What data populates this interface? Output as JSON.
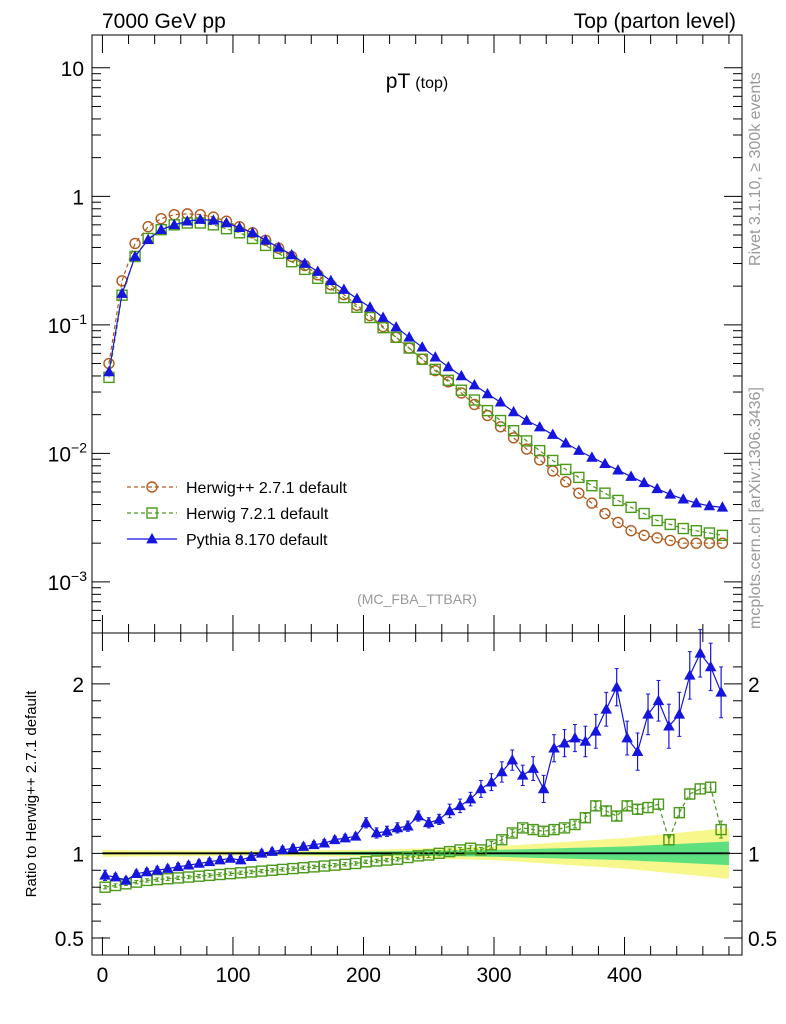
{
  "header": {
    "left": "7000 GeV pp",
    "right": "Top (parton level)"
  },
  "side_labels": {
    "rivet": "Rivet 3.1.10, ≥ 300k events",
    "mcplots": "mcplots.cern.ch [arXiv:1306.3436]"
  },
  "chart_data": [
    {
      "panel": "main",
      "type": "line",
      "title": "pT",
      "title_sub": "(top)",
      "watermark": "(MC_FBA_TTBAR)",
      "xlabel": "",
      "ylabel": "",
      "y_scale": "log",
      "xlim": [
        -8,
        490
      ],
      "ylim": [
        0.0004,
        18
      ],
      "y_ticks": [
        {
          "value": 10,
          "label": "10"
        },
        {
          "value": 1,
          "label": "1"
        },
        {
          "value": 0.1,
          "label": "10",
          "sup": "−1"
        },
        {
          "value": 0.01,
          "label": "10",
          "sup": "−2"
        },
        {
          "value": 0.001,
          "label": "10",
          "sup": "−3"
        }
      ],
      "legend_position": "lower-left",
      "series": [
        {
          "name": "Herwig++ 2.7.1 default",
          "color": "#b05a1e",
          "marker": "circle",
          "dashed": true,
          "x": [
            5,
            15,
            25,
            35,
            45,
            55,
            65,
            75,
            85,
            95,
            105,
            115,
            125,
            135,
            145,
            155,
            165,
            175,
            185,
            195,
            205,
            215,
            225,
            235,
            245,
            255,
            265,
            275,
            285,
            295,
            305,
            315,
            325,
            335,
            345,
            355,
            365,
            375,
            385,
            395,
            405,
            415,
            425,
            435,
            445,
            455,
            465,
            475
          ],
          "y": [
            0.05,
            0.22,
            0.43,
            0.58,
            0.67,
            0.72,
            0.73,
            0.72,
            0.69,
            0.64,
            0.58,
            0.52,
            0.455,
            0.395,
            0.34,
            0.29,
            0.245,
            0.205,
            0.172,
            0.142,
            0.118,
            0.097,
            0.08,
            0.066,
            0.054,
            0.044,
            0.036,
            0.0295,
            0.024,
            0.0197,
            0.0161,
            0.0132,
            0.0108,
            0.0089,
            0.0073,
            0.006,
            0.0049,
            0.0041,
            0.0034,
            0.0029,
            0.0025,
            0.0023,
            0.0022,
            0.0021,
            0.002,
            0.002,
            0.002,
            0.002
          ]
        },
        {
          "name": "Herwig 7.2.1 default",
          "color": "#4a9a1a",
          "marker": "square",
          "dashed": true,
          "x": [
            5,
            15,
            25,
            35,
            45,
            55,
            65,
            75,
            85,
            95,
            105,
            115,
            125,
            135,
            145,
            155,
            165,
            175,
            185,
            195,
            205,
            215,
            225,
            235,
            245,
            255,
            265,
            275,
            285,
            295,
            305,
            315,
            325,
            335,
            345,
            355,
            365,
            375,
            385,
            395,
            405,
            415,
            425,
            435,
            445,
            455,
            465,
            475
          ],
          "y": [
            0.039,
            0.17,
            0.34,
            0.47,
            0.55,
            0.6,
            0.62,
            0.62,
            0.6,
            0.56,
            0.52,
            0.47,
            0.415,
            0.36,
            0.31,
            0.27,
            0.23,
            0.193,
            0.163,
            0.137,
            0.114,
            0.095,
            0.08,
            0.066,
            0.054,
            0.045,
            0.037,
            0.031,
            0.026,
            0.0215,
            0.018,
            0.015,
            0.0125,
            0.0105,
            0.0088,
            0.0075,
            0.0065,
            0.0056,
            0.0049,
            0.0043,
            0.0038,
            0.0034,
            0.003,
            0.0028,
            0.0026,
            0.0025,
            0.0024,
            0.0023
          ]
        },
        {
          "name": "Pythia 8.170 default",
          "color": "#1515dd",
          "marker": "triangle",
          "dashed": false,
          "x": [
            5,
            15,
            25,
            35,
            45,
            55,
            65,
            75,
            85,
            95,
            105,
            115,
            125,
            135,
            145,
            155,
            165,
            175,
            185,
            195,
            205,
            215,
            225,
            235,
            245,
            255,
            265,
            275,
            285,
            295,
            305,
            315,
            325,
            335,
            345,
            355,
            365,
            375,
            385,
            395,
            405,
            415,
            425,
            435,
            445,
            455,
            465,
            475
          ],
          "y": [
            0.043,
            0.175,
            0.34,
            0.46,
            0.55,
            0.6,
            0.64,
            0.66,
            0.65,
            0.62,
            0.57,
            0.52,
            0.455,
            0.4,
            0.35,
            0.3,
            0.26,
            0.22,
            0.188,
            0.16,
            0.137,
            0.114,
            0.096,
            0.08,
            0.067,
            0.056,
            0.047,
            0.04,
            0.034,
            0.029,
            0.025,
            0.021,
            0.018,
            0.016,
            0.014,
            0.012,
            0.0105,
            0.0093,
            0.0083,
            0.0074,
            0.0066,
            0.0059,
            0.0053,
            0.0048,
            0.0044,
            0.0041,
            0.0039,
            0.0038
          ]
        }
      ]
    },
    {
      "panel": "ratio",
      "type": "line",
      "title": "",
      "xlabel": "",
      "ylabel": "Ratio to Herwig++ 2.7.1 default",
      "xlim": [
        -8,
        490
      ],
      "ylim": [
        0.4,
        2.3
      ],
      "x_ticks": [
        {
          "value": 0,
          "label": "0"
        },
        {
          "value": 100,
          "label": "100"
        },
        {
          "value": 200,
          "label": "200"
        },
        {
          "value": 300,
          "label": "300"
        },
        {
          "value": 400,
          "label": "400"
        }
      ],
      "y_ticks": [
        {
          "value": 2,
          "label": "2"
        },
        {
          "value": 1,
          "label": "1"
        },
        {
          "value": 0.5,
          "label": "0.5"
        }
      ],
      "reference_line": 1,
      "band_inner": {
        "color": "#5fe07f",
        "x": [
          0,
          100,
          200,
          300,
          400,
          480
        ],
        "low": [
          0.995,
          0.995,
          0.99,
          0.98,
          0.96,
          0.93
        ],
        "high": [
          1.005,
          1.005,
          1.01,
          1.02,
          1.04,
          1.07
        ]
      },
      "band_outer": {
        "color": "#f7f78c",
        "x": [
          0,
          100,
          200,
          300,
          400,
          480
        ],
        "low": [
          0.98,
          0.985,
          0.98,
          0.96,
          0.91,
          0.85
        ],
        "high": [
          1.02,
          1.015,
          1.02,
          1.04,
          1.09,
          1.15
        ]
      },
      "series": [
        {
          "name": "Herwig 7.2.1 default",
          "color": "#4a9a1a",
          "marker": "square",
          "x": [
            2,
            10,
            18,
            26,
            34,
            42,
            50,
            58,
            66,
            74,
            82,
            90,
            98,
            106,
            114,
            122,
            130,
            138,
            146,
            154,
            162,
            170,
            178,
            186,
            194,
            202,
            210,
            218,
            226,
            234,
            242,
            250,
            258,
            266,
            274,
            282,
            290,
            298,
            306,
            314,
            322,
            330,
            338,
            346,
            354,
            362,
            370,
            378,
            386,
            394,
            402,
            410,
            418,
            426,
            434,
            442,
            450,
            458,
            466,
            474
          ],
          "y": [
            0.8,
            0.81,
            0.82,
            0.83,
            0.84,
            0.845,
            0.85,
            0.855,
            0.86,
            0.865,
            0.87,
            0.875,
            0.88,
            0.885,
            0.89,
            0.895,
            0.9,
            0.905,
            0.91,
            0.915,
            0.92,
            0.925,
            0.93,
            0.935,
            0.94,
            0.95,
            0.955,
            0.96,
            0.965,
            0.975,
            0.985,
            0.99,
            1.0,
            1.01,
            1.02,
            1.03,
            1.02,
            1.05,
            1.08,
            1.12,
            1.15,
            1.14,
            1.13,
            1.14,
            1.15,
            1.17,
            1.21,
            1.28,
            1.25,
            1.22,
            1.28,
            1.26,
            1.27,
            1.29,
            1.08,
            1.24,
            1.35,
            1.38,
            1.39,
            1.14
          ],
          "err": [
            0.01,
            0.01,
            0.01,
            0.01,
            0.01,
            0.01,
            0.01,
            0.01,
            0.01,
            0.01,
            0.01,
            0.01,
            0.01,
            0.01,
            0.01,
            0.01,
            0.01,
            0.01,
            0.01,
            0.01,
            0.01,
            0.01,
            0.01,
            0.01,
            0.01,
            0.01,
            0.01,
            0.01,
            0.01,
            0.01,
            0.015,
            0.015,
            0.015,
            0.015,
            0.015,
            0.015,
            0.015,
            0.02,
            0.02,
            0.02,
            0.02,
            0.02,
            0.02,
            0.02,
            0.02,
            0.02,
            0.025,
            0.025,
            0.025,
            0.025,
            0.025,
            0.025,
            0.03,
            0.03,
            0.03,
            0.03,
            0.03,
            0.03,
            0.03,
            0.05
          ]
        },
        {
          "name": "Pythia 8.170 default",
          "color": "#1515dd",
          "marker": "triangle",
          "x": [
            2,
            10,
            18,
            26,
            34,
            42,
            50,
            58,
            66,
            74,
            82,
            90,
            98,
            106,
            114,
            122,
            130,
            138,
            146,
            154,
            162,
            170,
            178,
            186,
            194,
            202,
            210,
            218,
            226,
            234,
            242,
            250,
            258,
            266,
            274,
            282,
            290,
            298,
            306,
            314,
            322,
            330,
            338,
            346,
            354,
            362,
            370,
            378,
            386,
            394,
            402,
            410,
            418,
            426,
            434,
            442,
            450,
            458,
            466,
            474
          ],
          "y": [
            0.87,
            0.86,
            0.84,
            0.88,
            0.89,
            0.9,
            0.91,
            0.92,
            0.93,
            0.94,
            0.95,
            0.96,
            0.97,
            0.96,
            0.98,
            1.0,
            1.01,
            1.02,
            1.03,
            1.04,
            1.05,
            1.06,
            1.08,
            1.09,
            1.1,
            1.18,
            1.12,
            1.13,
            1.15,
            1.16,
            1.22,
            1.18,
            1.2,
            1.25,
            1.28,
            1.32,
            1.38,
            1.42,
            1.48,
            1.55,
            1.46,
            1.5,
            1.38,
            1.62,
            1.65,
            1.68,
            1.66,
            1.72,
            1.85,
            1.98,
            1.68,
            1.6,
            1.82,
            1.9,
            1.75,
            1.82,
            2.05,
            2.18,
            2.1,
            1.95
          ],
          "err": [
            0.03,
            0.02,
            0.02,
            0.02,
            0.02,
            0.02,
            0.02,
            0.02,
            0.02,
            0.02,
            0.02,
            0.02,
            0.02,
            0.02,
            0.02,
            0.02,
            0.02,
            0.02,
            0.02,
            0.02,
            0.02,
            0.02,
            0.02,
            0.02,
            0.02,
            0.03,
            0.03,
            0.03,
            0.03,
            0.03,
            0.03,
            0.03,
            0.03,
            0.04,
            0.04,
            0.04,
            0.05,
            0.05,
            0.06,
            0.06,
            0.06,
            0.07,
            0.08,
            0.08,
            0.08,
            0.08,
            0.09,
            0.1,
            0.1,
            0.11,
            0.1,
            0.11,
            0.12,
            0.12,
            0.13,
            0.13,
            0.14,
            0.14,
            0.14,
            0.15
          ]
        }
      ]
    }
  ]
}
